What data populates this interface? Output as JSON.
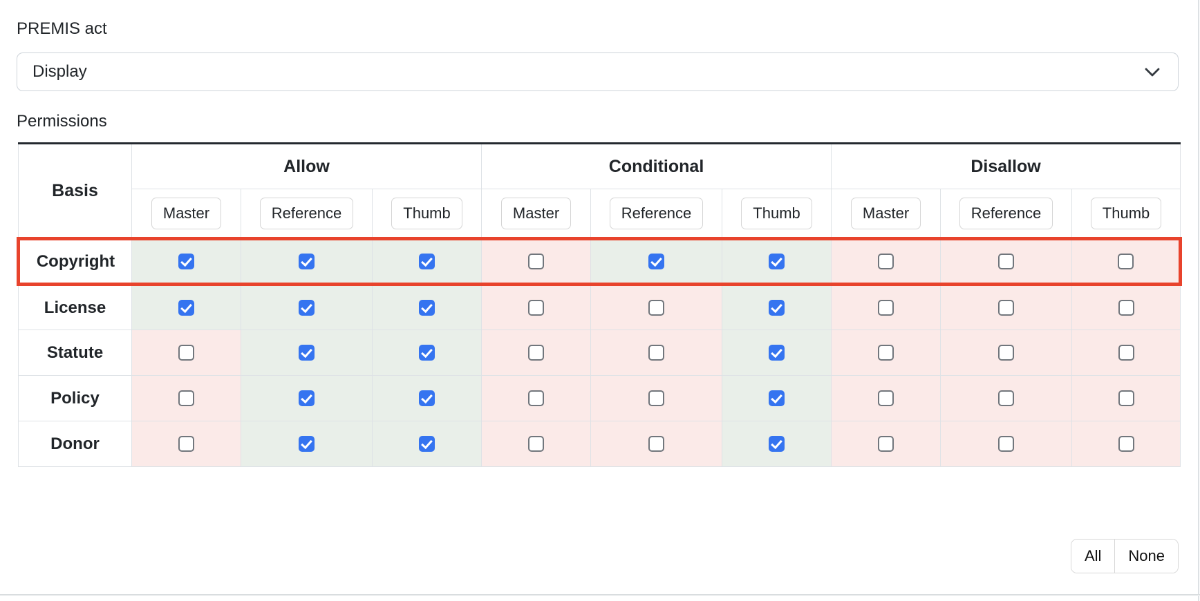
{
  "form": {
    "premis_act_label": "PREMIS act",
    "premis_act_value": "Display",
    "permissions_label": "Permissions"
  },
  "table": {
    "basis_header": "Basis",
    "group_headers": [
      "Allow",
      "Conditional",
      "Disallow"
    ],
    "subcolumn_headers": [
      "Master",
      "Reference",
      "Thumb"
    ],
    "rows": [
      {
        "basis": "Copyright",
        "highlighted": true,
        "checks": {
          "allow": [
            true,
            true,
            true
          ],
          "conditional": [
            false,
            true,
            true
          ],
          "disallow": [
            false,
            false,
            false
          ]
        }
      },
      {
        "basis": "License",
        "highlighted": false,
        "checks": {
          "allow": [
            true,
            true,
            true
          ],
          "conditional": [
            false,
            false,
            true
          ],
          "disallow": [
            false,
            false,
            false
          ]
        }
      },
      {
        "basis": "Statute",
        "highlighted": false,
        "checks": {
          "allow": [
            false,
            true,
            true
          ],
          "conditional": [
            false,
            false,
            true
          ],
          "disallow": [
            false,
            false,
            false
          ]
        }
      },
      {
        "basis": "Policy",
        "highlighted": false,
        "checks": {
          "allow": [
            false,
            true,
            true
          ],
          "conditional": [
            false,
            false,
            true
          ],
          "disallow": [
            false,
            false,
            false
          ]
        }
      },
      {
        "basis": "Donor",
        "highlighted": false,
        "checks": {
          "allow": [
            false,
            true,
            true
          ],
          "conditional": [
            false,
            false,
            true
          ],
          "disallow": [
            false,
            false,
            false
          ]
        }
      }
    ]
  },
  "bulk_actions": {
    "all_label": "All",
    "none_label": "None"
  },
  "colors": {
    "checked_cell_bg": "#e9efe9",
    "unchecked_cell_bg": "#fbeae8",
    "checkbox_checked": "#3574f0",
    "highlight_border": "#e8432c"
  },
  "icons": {
    "select_chevron": "chevron-down-icon"
  }
}
